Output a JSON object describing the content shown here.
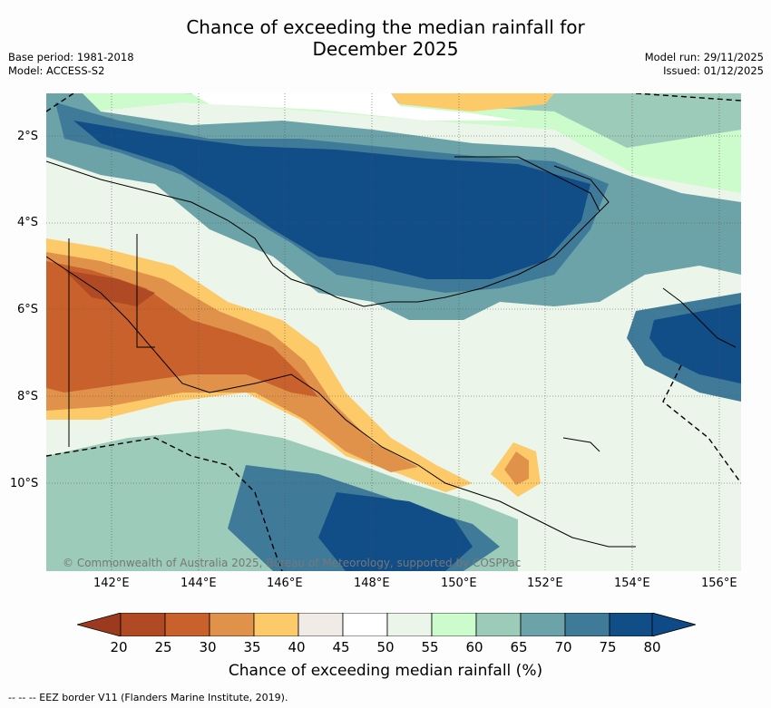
{
  "title": {
    "line1": "Chance of exceeding the median rainfall for",
    "line2": "December 2025"
  },
  "meta": {
    "base_period": "Base period: 1981-2018",
    "model": "Model: ACCESS-S2",
    "model_run": "Model run: 29/11/2025",
    "issued": "Issued: 01/12/2025"
  },
  "map": {
    "lat_labels": [
      "2°S",
      "4°S",
      "6°S",
      "8°S",
      "10°S"
    ],
    "lon_labels": [
      "142°E",
      "144°E",
      "146°E",
      "148°E",
      "150°E",
      "152°E",
      "154°E",
      "156°E"
    ],
    "copyright": "© Commonwealth of Australia 2025, Bureau of Meteorology, supported by COSPPac"
  },
  "colorbar": {
    "ticks": [
      "20",
      "25",
      "30",
      "35",
      "40",
      "45",
      "50",
      "55",
      "60",
      "65",
      "70",
      "75",
      "80"
    ],
    "colors": [
      "#b04a25",
      "#c9612c",
      "#e0924a",
      "#fdca6a",
      "#f1ebe7",
      "#ffffff",
      "#ffffff",
      "#ebf5e9",
      "#ccfccb",
      "#9ccbb9",
      "#6ba3a8",
      "#3f7a99",
      "#114d86"
    ],
    "low_color": "#9c3a1f",
    "high_color": "#0e4a85",
    "label": "Chance of exceeding median rainfall (%)"
  },
  "legend": {
    "eez": "--  --  -- EEZ border V11 (Flanders Marine Institute, 2019)."
  }
}
